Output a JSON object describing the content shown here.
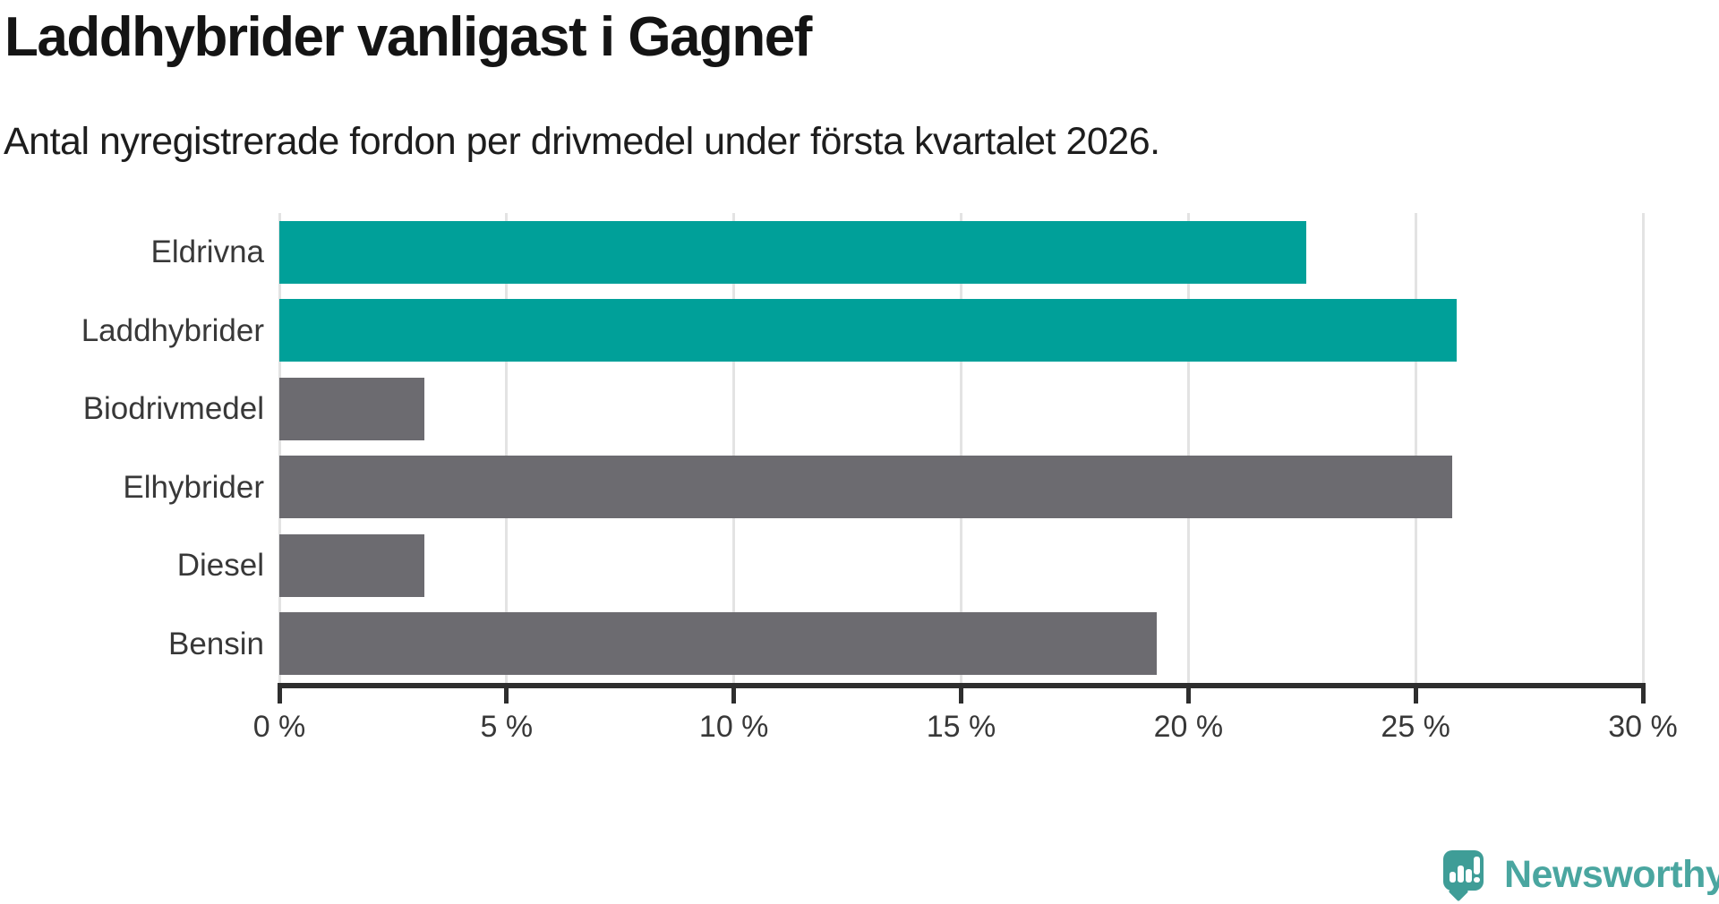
{
  "header": {
    "title": "Laddhybrider vanligast i Gagnef",
    "subtitle": "Antal nyregistrerade fordon per drivmedel under första kvartalet 2026."
  },
  "chart_data": {
    "type": "bar",
    "orientation": "horizontal",
    "title": "Laddhybrider vanligast i Gagnef",
    "subtitle": "Antal nyregistrerade fordon per drivmedel under första kvartalet 2026.",
    "categories": [
      "Eldrivna",
      "Laddhybrider",
      "Biodrivmedel",
      "Elhybrider",
      "Diesel",
      "Bensin"
    ],
    "values": [
      22.6,
      25.9,
      3.2,
      25.8,
      3.2,
      19.3
    ],
    "unit": "%",
    "bar_colors": [
      "#00a099",
      "#00a099",
      "#6c6b70",
      "#6c6b70",
      "#6c6b70",
      "#6c6b70"
    ],
    "highlight_color": "#00a099",
    "default_color": "#6c6b70",
    "xlabel": "",
    "ylabel": "",
    "xlim": [
      0,
      30
    ],
    "x_ticks": [
      0,
      5,
      10,
      15,
      20,
      25,
      30
    ],
    "x_tick_labels": [
      "0 %",
      "5 %",
      "10 %",
      "15 %",
      "20 %",
      "25 %",
      "30 %"
    ],
    "grid": "vertical-gridlines-on",
    "legend": "none"
  },
  "colors": {
    "accent_teal": "#00a099",
    "bar_gray": "#6c6b70",
    "gridline": "#e3e3e3",
    "axis": "#2e2e2e",
    "title_text": "#141414",
    "label_text": "#383838",
    "logo_teal": "#3f9d97",
    "wordmark_teal": "#4aa6a0"
  },
  "footer": {
    "brand_name": "Newsworthy",
    "logo_icon": "speech-bubble-bar-chart-exclamation"
  }
}
